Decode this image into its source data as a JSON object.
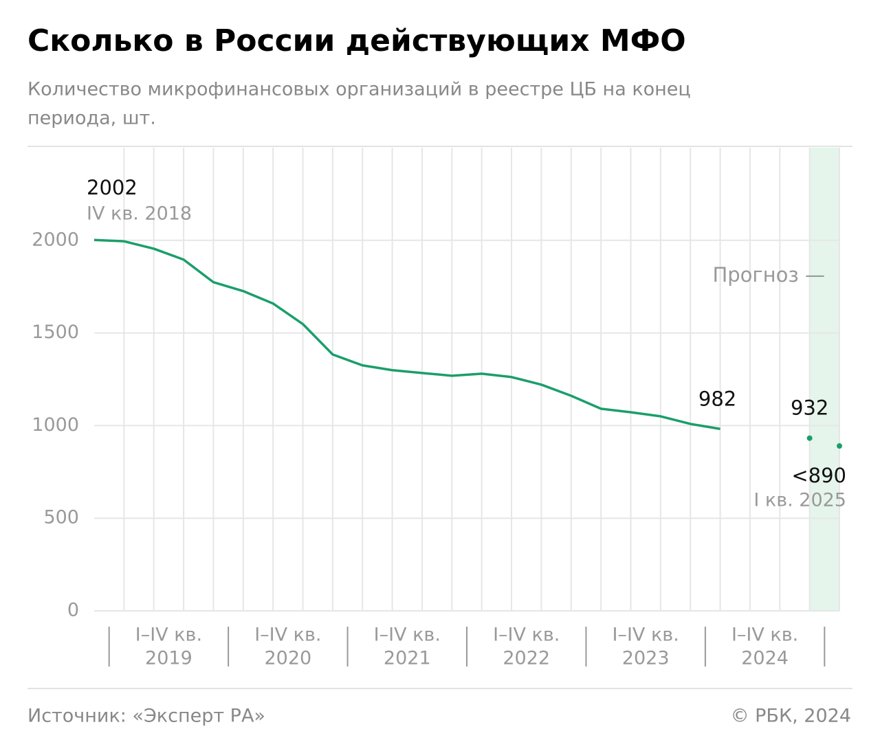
{
  "chart_data": {
    "type": "line",
    "title": "Сколько в России действующих МФО",
    "subtitle": [
      "Количество микрофинансовых организаций в реестре ЦБ на конец",
      "периода, шт."
    ],
    "categories": [
      null,
      null,
      null,
      null,
      null,
      null,
      null,
      null,
      null,
      null,
      null,
      null,
      null,
      null,
      null,
      null,
      null,
      null,
      null,
      null,
      null,
      null,
      null,
      null,
      null,
      null
    ],
    "groups": [
      {
        "period": "I–IV кв.",
        "year": "2019"
      },
      {
        "period": "I–IV кв.",
        "year": "2020"
      },
      {
        "period": "I–IV кв.",
        "year": "2021"
      },
      {
        "period": "I–IV кв.",
        "year": "2022"
      },
      {
        "period": "I–IV кв.",
        "year": "2023"
      },
      {
        "period": "I–IV кв.",
        "year": "2024"
      }
    ],
    "series": [
      {
        "name": null,
        "color": "#1b9e6b",
        "style": "line",
        "values": [
          2002,
          1995,
          1955,
          1896,
          1774,
          1726,
          1659,
          1548,
          1384,
          1325,
          1299,
          1284,
          1269,
          1280,
          1262,
          1221,
          1161,
          1091,
          1072,
          1050,
          1009,
          982,
          null,
          null,
          null,
          null
        ]
      },
      {
        "name": null,
        "color": "#1b9e6b",
        "style": "dots",
        "values": [
          null,
          null,
          null,
          null,
          null,
          null,
          null,
          null,
          null,
          null,
          null,
          null,
          null,
          null,
          null,
          null,
          null,
          null,
          null,
          null,
          null,
          null,
          null,
          null,
          932,
          890
        ],
        "value_labels": [
          null,
          null,
          null,
          null,
          null,
          null,
          null,
          null,
          null,
          null,
          null,
          null,
          null,
          null,
          null,
          null,
          null,
          null,
          null,
          null,
          null,
          null,
          null,
          null,
          null,
          "<890"
        ]
      }
    ],
    "annotations": {
      "start_period": "IV кв. 2018",
      "end_period": "I кв. 2025",
      "forecast": "Прогноз —"
    },
    "forecast_band_color": "#e5f5eb",
    "ylim": [
      0,
      2500
    ],
    "yticks": [
      0,
      500,
      1000,
      1500,
      2000
    ],
    "grid": true,
    "source": "Источник: «Эксперт РА»",
    "copyright": "© РБК, 2024"
  }
}
